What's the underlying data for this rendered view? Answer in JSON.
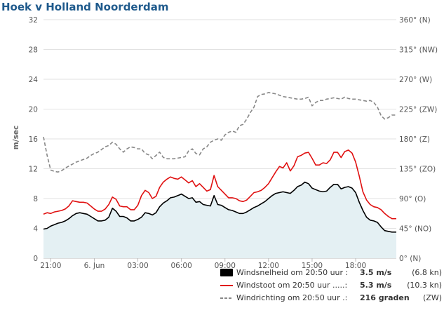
{
  "title": "Hoek v Holland Noorderdam",
  "chart_data": {
    "type": "line",
    "title": "Hoek v Holland Noorderdam",
    "ylabel": "m/sec",
    "ylim": [
      0,
      32
    ],
    "y_ticks": [
      0,
      4,
      8,
      12,
      16,
      20,
      24,
      28,
      32
    ],
    "y_tick_labels": [
      "0",
      "4",
      "8",
      "12",
      "16",
      "20",
      "24",
      "28",
      "32"
    ],
    "y2lim": [
      0,
      360
    ],
    "y2_ticks": [
      0,
      45,
      90,
      135,
      180,
      225,
      270,
      315,
      360
    ],
    "y2_tick_labels": [
      "0° (N)",
      "45° (NO)",
      "90° (O)",
      "135° (ZO)",
      "180° (Z)",
      "225° (ZW)",
      "270° (W)",
      "315° (NW)",
      "360° (N)"
    ],
    "x_range_hours": [
      20.5,
      44.8
    ],
    "x_ticks": [
      21,
      24,
      27,
      30,
      33,
      36,
      39,
      42
    ],
    "x_tick_labels": [
      "21:00",
      "6. Jun",
      "03:00",
      "06:00",
      "09:00",
      "12:00",
      "15:00",
      "18:00"
    ],
    "x": [
      20.5,
      20.75,
      21,
      21.25,
      21.5,
      21.75,
      22,
      22.25,
      22.5,
      22.75,
      23,
      23.25,
      23.5,
      23.75,
      24,
      24.25,
      24.5,
      24.75,
      25,
      25.25,
      25.5,
      25.75,
      26,
      26.25,
      26.5,
      26.75,
      27,
      27.25,
      27.5,
      27.75,
      28,
      28.25,
      28.5,
      28.75,
      29,
      29.25,
      29.5,
      29.75,
      30,
      30.25,
      30.5,
      30.75,
      31,
      31.25,
      31.5,
      31.75,
      32,
      32.25,
      32.5,
      32.75,
      33,
      33.25,
      33.5,
      33.75,
      34,
      34.25,
      34.5,
      34.75,
      35,
      35.25,
      35.5,
      35.75,
      36,
      36.25,
      36.5,
      36.75,
      37,
      37.25,
      37.5,
      37.75,
      38,
      38.25,
      38.5,
      38.75,
      39,
      39.25,
      39.5,
      39.75,
      40,
      40.25,
      40.5,
      40.75,
      41,
      41.25,
      41.5,
      41.75,
      42,
      42.25,
      42.5,
      42.75,
      43,
      43.25,
      43.5,
      43.75,
      44,
      44.25,
      44.5,
      44.8
    ],
    "series": [
      {
        "name": "Windsnelheid",
        "axis": "left",
        "color": "#000000",
        "style": "solid-fill",
        "fill": "#e4f0f3",
        "values": [
          3.9,
          4.0,
          4.3,
          4.5,
          4.7,
          4.8,
          5.0,
          5.3,
          5.7,
          6.0,
          6.1,
          6.0,
          5.9,
          5.6,
          5.3,
          5.0,
          5.0,
          5.1,
          5.5,
          6.7,
          6.3,
          5.6,
          5.6,
          5.4,
          5.0,
          5.0,
          5.2,
          5.5,
          6.1,
          6.0,
          5.8,
          6.1,
          6.9,
          7.4,
          7.7,
          8.1,
          8.2,
          8.4,
          8.6,
          8.3,
          8.0,
          8.1,
          7.5,
          7.6,
          7.2,
          7.1,
          7.0,
          8.4,
          7.2,
          7.1,
          6.8,
          6.5,
          6.4,
          6.2,
          6.0,
          6.0,
          6.2,
          6.5,
          6.8,
          7.0,
          7.3,
          7.6,
          8.0,
          8.4,
          8.7,
          8.8,
          8.9,
          8.8,
          8.7,
          9.1,
          9.6,
          9.8,
          10.2,
          10.0,
          9.4,
          9.2,
          9.0,
          8.9,
          9.0,
          9.5,
          9.9,
          9.9,
          9.3,
          9.5,
          9.6,
          9.4,
          8.8,
          7.5,
          6.4,
          5.5,
          5.1,
          5.0,
          4.8,
          4.2,
          3.7,
          3.6,
          3.5,
          3.5
        ]
      },
      {
        "name": "Windstoot",
        "axis": "left",
        "color": "#e01010",
        "style": "solid",
        "values": [
          5.9,
          6.1,
          6.0,
          6.2,
          6.3,
          6.4,
          6.6,
          7.0,
          7.7,
          7.6,
          7.5,
          7.5,
          7.4,
          7.0,
          6.6,
          6.3,
          6.3,
          6.6,
          7.2,
          8.2,
          7.9,
          7.0,
          6.9,
          6.9,
          6.5,
          6.5,
          7.1,
          8.4,
          9.1,
          8.8,
          8.0,
          8.3,
          9.5,
          10.2,
          10.6,
          10.9,
          10.7,
          10.6,
          10.9,
          10.5,
          10.1,
          10.4,
          9.6,
          10.0,
          9.5,
          9.0,
          9.2,
          11.1,
          9.6,
          9.1,
          8.6,
          8.1,
          8.1,
          8.0,
          7.7,
          7.6,
          7.8,
          8.3,
          8.8,
          8.9,
          9.1,
          9.5,
          10.0,
          10.8,
          11.6,
          12.3,
          12.1,
          12.8,
          11.7,
          12.4,
          13.6,
          13.8,
          14.1,
          14.2,
          13.4,
          12.5,
          12.5,
          12.8,
          12.7,
          13.2,
          14.2,
          14.2,
          13.5,
          14.3,
          14.5,
          14.1,
          12.9,
          11.0,
          8.9,
          7.8,
          7.2,
          6.9,
          6.8,
          6.5,
          6.0,
          5.6,
          5.3,
          5.3
        ]
      },
      {
        "name": "Windrichting",
        "axis": "right",
        "color": "#888888",
        "style": "dashed",
        "values": [
          183,
          155,
          133,
          131,
          130,
          132,
          136,
          139,
          142,
          145,
          147,
          149,
          151,
          155,
          158,
          160,
          164,
          168,
          170,
          175,
          172,
          165,
          160,
          165,
          168,
          167,
          165,
          165,
          158,
          156,
          150,
          155,
          160,
          152,
          150,
          150,
          150,
          151,
          152,
          153,
          162,
          165,
          158,
          156,
          165,
          168,
          175,
          178,
          180,
          178,
          186,
          190,
          192,
          190,
          200,
          202,
          210,
          220,
          228,
          244,
          247,
          248,
          250,
          249,
          248,
          246,
          244,
          243,
          242,
          241,
          240,
          240,
          241,
          243,
          230,
          235,
          238,
          238,
          240,
          241,
          242,
          241,
          240,
          243,
          241,
          240,
          240,
          239,
          238,
          237,
          238,
          235,
          228,
          215,
          210,
          212,
          216,
          216
        ]
      }
    ],
    "legend": [
      {
        "label": "Windsnelheid om 20:50 uur :",
        "value": "3.5 m/s",
        "extra": "(6.8 kn)"
      },
      {
        "label": "Windstoot om 20:50 uur .....:",
        "value": "5.3 m/s",
        "extra": "(10.3 kn)"
      },
      {
        "label": "Windrichting om 20:50 uur .:",
        "value": "216 graden",
        "extra": "(ZW)"
      }
    ],
    "legend_placement": "bottom-right",
    "grid": true
  }
}
